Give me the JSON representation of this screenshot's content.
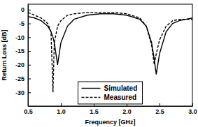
{
  "chart_data": {
    "type": "line",
    "x_label": "Frequency [GHz]",
    "y_label": "Return Loss [dB]",
    "x": [
      0.5,
      0.6,
      0.7,
      0.8,
      0.85,
      0.88,
      0.9,
      0.95,
      1.0,
      1.1,
      1.2,
      1.4,
      1.6,
      1.8,
      2.0,
      2.2,
      2.3,
      2.38,
      2.42,
      2.45,
      2.5,
      2.6,
      2.7,
      2.8,
      3.0
    ],
    "series": [
      {
        "name": "Simulated",
        "color": "#000000",
        "line_style": "solid",
        "values": [
          -2.5,
          -3,
          -4,
          -6,
          -8,
          -10,
          -12,
          -20,
          -12,
          -6,
          -3.5,
          -2,
          -1.5,
          -1.5,
          -2,
          -3.5,
          -6,
          -12,
          -18,
          -23.5,
          -16,
          -8,
          -5,
          -4,
          -3
        ]
      },
      {
        "name": "Measured",
        "color": "#000000",
        "line_style": "dashed",
        "values": [
          -1,
          -2,
          -3,
          -5,
          -8,
          -30,
          -12,
          -6,
          -4,
          -2,
          -1.5,
          -1,
          -1,
          -1,
          -1.5,
          -3,
          -6,
          -13,
          -20,
          -16,
          -11,
          -6,
          -4,
          -3.5,
          -3.5
        ]
      }
    ],
    "xlim": [
      0.5,
      3.0
    ],
    "xticks": [
      0.5,
      {
        "value": 1,
        "label": "1.0"
      },
      1.5,
      {
        "value": 2,
        "label": "2.0"
      },
      2.5,
      {
        "value": 3,
        "label": "3.0"
      }
    ],
    "ylim": [
      -35,
      2
    ],
    "yticks": [
      -30,
      -25,
      -20,
      -15,
      -10,
      -5,
      0
    ],
    "legend": "lower center"
  }
}
